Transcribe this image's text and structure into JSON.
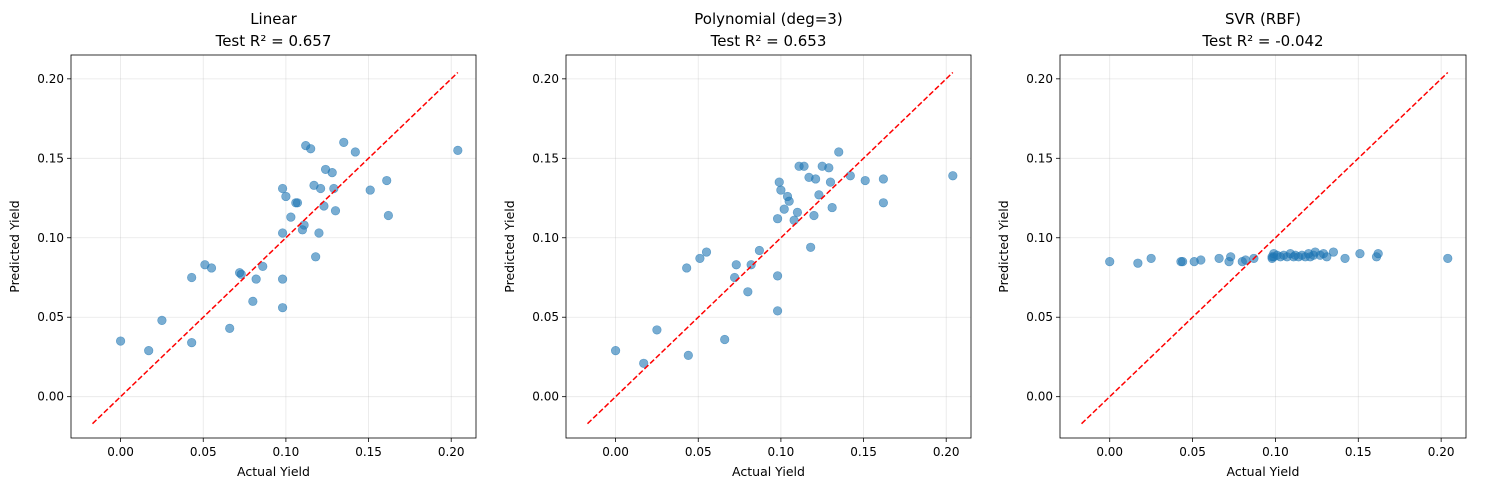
{
  "chart_data": [
    {
      "type": "scatter",
      "title": "Linear",
      "subtitle": "Test R² = 0.657",
      "xlabel": "Actual Yield",
      "ylabel": "Predicted Yield",
      "xlim": [
        -0.03,
        0.215
      ],
      "ylim": [
        -0.026,
        0.215
      ],
      "xticks": [
        0.0,
        0.05,
        0.1,
        0.15,
        0.2
      ],
      "yticks": [
        0.0,
        0.05,
        0.1,
        0.15,
        0.2
      ],
      "grid": true,
      "reference_line": {
        "x": [
          -0.017,
          0.204
        ],
        "y": [
          -0.017,
          0.204
        ],
        "color": "#ff0000",
        "style": "dashed"
      },
      "point_color": "#1f77b4",
      "points": [
        [
          0.0,
          0.035
        ],
        [
          0.017,
          0.029
        ],
        [
          0.025,
          0.048
        ],
        [
          0.043,
          0.034
        ],
        [
          0.043,
          0.075
        ],
        [
          0.051,
          0.083
        ],
        [
          0.055,
          0.081
        ],
        [
          0.066,
          0.043
        ],
        [
          0.072,
          0.078
        ],
        [
          0.073,
          0.077
        ],
        [
          0.08,
          0.06
        ],
        [
          0.082,
          0.074
        ],
        [
          0.086,
          0.082
        ],
        [
          0.098,
          0.056
        ],
        [
          0.098,
          0.074
        ],
        [
          0.098,
          0.103
        ],
        [
          0.098,
          0.131
        ],
        [
          0.1,
          0.126
        ],
        [
          0.103,
          0.113
        ],
        [
          0.106,
          0.122
        ],
        [
          0.107,
          0.122
        ],
        [
          0.11,
          0.105
        ],
        [
          0.111,
          0.108
        ],
        [
          0.112,
          0.158
        ],
        [
          0.115,
          0.156
        ],
        [
          0.117,
          0.133
        ],
        [
          0.118,
          0.088
        ],
        [
          0.12,
          0.103
        ],
        [
          0.121,
          0.131
        ],
        [
          0.123,
          0.12
        ],
        [
          0.124,
          0.143
        ],
        [
          0.128,
          0.141
        ],
        [
          0.129,
          0.131
        ],
        [
          0.13,
          0.117
        ],
        [
          0.135,
          0.16
        ],
        [
          0.142,
          0.154
        ],
        [
          0.151,
          0.13
        ],
        [
          0.161,
          0.136
        ],
        [
          0.162,
          0.114
        ],
        [
          0.204,
          0.155
        ]
      ]
    },
    {
      "type": "scatter",
      "title": "Polynomial (deg=3)",
      "subtitle": "Test R² = 0.653",
      "xlabel": "Actual Yield",
      "ylabel": "Predicted Yield",
      "xlim": [
        -0.03,
        0.215
      ],
      "ylim": [
        -0.026,
        0.215
      ],
      "xticks": [
        0.0,
        0.05,
        0.1,
        0.15,
        0.2
      ],
      "yticks": [
        0.0,
        0.05,
        0.1,
        0.15,
        0.2
      ],
      "grid": true,
      "reference_line": {
        "x": [
          -0.017,
          0.204
        ],
        "y": [
          -0.017,
          0.204
        ],
        "color": "#ff0000",
        "style": "dashed"
      },
      "point_color": "#1f77b4",
      "points": [
        [
          0.0,
          0.029
        ],
        [
          0.017,
          0.021
        ],
        [
          0.025,
          0.042
        ],
        [
          0.043,
          0.081
        ],
        [
          0.044,
          0.026
        ],
        [
          0.051,
          0.087
        ],
        [
          0.055,
          0.091
        ],
        [
          0.066,
          0.036
        ],
        [
          0.072,
          0.075
        ],
        [
          0.073,
          0.083
        ],
        [
          0.08,
          0.066
        ],
        [
          0.082,
          0.083
        ],
        [
          0.087,
          0.092
        ],
        [
          0.098,
          0.054
        ],
        [
          0.098,
          0.076
        ],
        [
          0.098,
          0.112
        ],
        [
          0.099,
          0.135
        ],
        [
          0.1,
          0.13
        ],
        [
          0.102,
          0.118
        ],
        [
          0.104,
          0.126
        ],
        [
          0.105,
          0.123
        ],
        [
          0.108,
          0.111
        ],
        [
          0.11,
          0.116
        ],
        [
          0.111,
          0.145
        ],
        [
          0.114,
          0.145
        ],
        [
          0.117,
          0.138
        ],
        [
          0.118,
          0.094
        ],
        [
          0.12,
          0.114
        ],
        [
          0.121,
          0.137
        ],
        [
          0.123,
          0.127
        ],
        [
          0.125,
          0.145
        ],
        [
          0.129,
          0.144
        ],
        [
          0.13,
          0.135
        ],
        [
          0.131,
          0.119
        ],
        [
          0.135,
          0.154
        ],
        [
          0.142,
          0.139
        ],
        [
          0.151,
          0.136
        ],
        [
          0.162,
          0.137
        ],
        [
          0.162,
          0.122
        ],
        [
          0.204,
          0.139
        ]
      ]
    },
    {
      "type": "scatter",
      "title": "SVR (RBF)",
      "subtitle": "Test R² = -0.042",
      "xlabel": "Actual Yield",
      "ylabel": "Predicted Yield",
      "xlim": [
        -0.03,
        0.215
      ],
      "ylim": [
        -0.026,
        0.215
      ],
      "xticks": [
        0.0,
        0.05,
        0.1,
        0.15,
        0.2
      ],
      "yticks": [
        0.0,
        0.05,
        0.1,
        0.15,
        0.2
      ],
      "grid": true,
      "reference_line": {
        "x": [
          -0.017,
          0.204
        ],
        "y": [
          -0.017,
          0.204
        ],
        "color": "#ff0000",
        "style": "dashed"
      },
      "point_color": "#1f77b4",
      "points": [
        [
          0.0,
          0.085
        ],
        [
          0.017,
          0.084
        ],
        [
          0.025,
          0.087
        ],
        [
          0.043,
          0.085
        ],
        [
          0.044,
          0.085
        ],
        [
          0.051,
          0.085
        ],
        [
          0.055,
          0.086
        ],
        [
          0.066,
          0.087
        ],
        [
          0.072,
          0.085
        ],
        [
          0.073,
          0.088
        ],
        [
          0.08,
          0.085
        ],
        [
          0.082,
          0.086
        ],
        [
          0.087,
          0.087
        ],
        [
          0.098,
          0.088
        ],
        [
          0.098,
          0.087
        ],
        [
          0.099,
          0.088
        ],
        [
          0.099,
          0.09
        ],
        [
          0.101,
          0.089
        ],
        [
          0.103,
          0.088
        ],
        [
          0.105,
          0.089
        ],
        [
          0.107,
          0.088
        ],
        [
          0.109,
          0.09
        ],
        [
          0.111,
          0.088
        ],
        [
          0.112,
          0.089
        ],
        [
          0.114,
          0.088
        ],
        [
          0.116,
          0.089
        ],
        [
          0.118,
          0.088
        ],
        [
          0.12,
          0.09
        ],
        [
          0.121,
          0.088
        ],
        [
          0.123,
          0.089
        ],
        [
          0.124,
          0.091
        ],
        [
          0.127,
          0.089
        ],
        [
          0.129,
          0.09
        ],
        [
          0.131,
          0.088
        ],
        [
          0.135,
          0.091
        ],
        [
          0.142,
          0.087
        ],
        [
          0.151,
          0.09
        ],
        [
          0.161,
          0.088
        ],
        [
          0.162,
          0.09
        ],
        [
          0.204,
          0.087
        ]
      ]
    }
  ]
}
